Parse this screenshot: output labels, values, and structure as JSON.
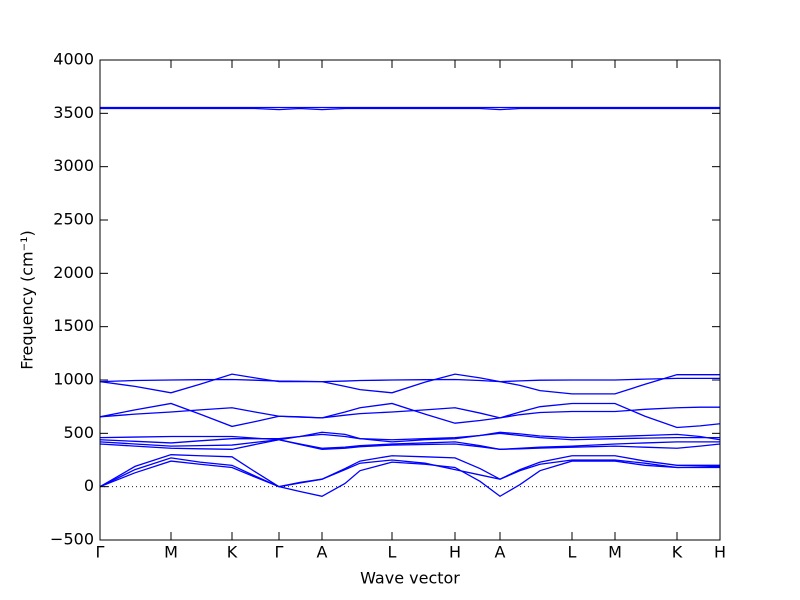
{
  "chart_data": {
    "type": "line",
    "xlabel": "Wave vector",
    "ylabel": "Frequency (cm⁻¹)",
    "x": [
      0,
      35,
      71,
      100,
      132,
      155,
      179,
      200,
      222,
      245,
      260,
      292,
      325,
      355,
      380,
      400,
      420,
      440,
      472,
      515,
      545,
      577,
      600,
      620
    ],
    "xlim": [
      0,
      620
    ],
    "xticks": [
      {
        "value": 0,
        "label": "Γ"
      },
      {
        "value": 71,
        "label": "M"
      },
      {
        "value": 132,
        "label": "K"
      },
      {
        "value": 179,
        "label": "Γ"
      },
      {
        "value": 222,
        "label": "A"
      },
      {
        "value": 292,
        "label": "L"
      },
      {
        "value": 355,
        "label": "H"
      },
      {
        "value": 400,
        "label": "A"
      },
      {
        "value": 472,
        "label": "L"
      },
      {
        "value": 515,
        "label": "M"
      },
      {
        "value": 577,
        "label": "K"
      },
      {
        "value": 620,
        "label": "H"
      }
    ],
    "ylim": [
      -500,
      4000
    ],
    "yticks": [
      {
        "value": -500,
        "label": "−500"
      },
      0,
      500,
      1000,
      1500,
      2000,
      2500,
      3000,
      3500,
      4000
    ],
    "baseline": 0,
    "series": [
      {
        "color": "#0000ff",
        "values": [
          3555,
          3555,
          3555,
          3555,
          3555,
          3555,
          3555,
          3555,
          3555,
          3555,
          3555,
          3555,
          3555,
          3555,
          3555,
          3555,
          3555,
          3555,
          3555,
          3555,
          3555,
          3555,
          3555,
          3555
        ]
      },
      {
        "color": "#0000ff",
        "values": [
          3545,
          3545,
          3545,
          3545,
          3545,
          3545,
          3535,
          3545,
          3535,
          3545,
          3545,
          3545,
          3545,
          3545,
          3545,
          3535,
          3545,
          3545,
          3545,
          3545,
          3545,
          3545,
          3545,
          3545
        ]
      },
      {
        "color": "#0000ff",
        "values": [
          985,
          940,
          880,
          960,
          1055,
          1020,
          985,
          985,
          985,
          940,
          910,
          880,
          980,
          1055,
          1020,
          985,
          950,
          900,
          870,
          870,
          960,
          1050,
          1050,
          1050
        ]
      },
      {
        "color": "#0000ff",
        "values": [
          985,
          995,
          1000,
          1003,
          1005,
          998,
          990,
          988,
          985,
          990,
          995,
          1000,
          1003,
          1005,
          995,
          985,
          992,
          998,
          1000,
          1000,
          1008,
          1015,
          1015,
          1015
        ]
      },
      {
        "color": "#0000ff",
        "values": [
          655,
          720,
          780,
          680,
          565,
          610,
          660,
          655,
          645,
          700,
          740,
          780,
          680,
          595,
          620,
          645,
          700,
          750,
          780,
          780,
          660,
          555,
          570,
          590
        ]
      },
      {
        "color": "#0000ff",
        "values": [
          655,
          680,
          700,
          720,
          740,
          700,
          660,
          652,
          645,
          670,
          685,
          700,
          720,
          740,
          690,
          645,
          675,
          695,
          705,
          705,
          725,
          740,
          745,
          745
        ]
      },
      {
        "color": "#0000ff",
        "values": [
          460,
          465,
          470,
          470,
          470,
          455,
          440,
          470,
          510,
          490,
          450,
          420,
          440,
          450,
          480,
          510,
          495,
          475,
          460,
          470,
          480,
          490,
          470,
          440
        ]
      },
      {
        "color": "#0000ff",
        "values": [
          440,
          425,
          410,
          430,
          450,
          450,
          450,
          470,
          490,
          470,
          450,
          440,
          450,
          460,
          480,
          500,
          480,
          460,
          440,
          450,
          455,
          460,
          460,
          460
        ]
      },
      {
        "color": "#0000ff",
        "values": [
          420,
          400,
          380,
          385,
          390,
          415,
          440,
          400,
          360,
          370,
          385,
          400,
          410,
          420,
          385,
          350,
          360,
          370,
          380,
          400,
          410,
          420,
          420,
          420
        ]
      },
      {
        "color": "#0000ff",
        "values": [
          400,
          380,
          360,
          355,
          350,
          395,
          440,
          395,
          350,
          360,
          375,
          390,
          395,
          400,
          375,
          350,
          355,
          362,
          370,
          380,
          370,
          360,
          380,
          400
        ]
      },
      {
        "color": "#0000ff",
        "values": [
          0,
          190,
          300,
          290,
          280,
          140,
          0,
          40,
          70,
          170,
          240,
          290,
          280,
          270,
          170,
          70,
          160,
          230,
          290,
          290,
          240,
          200,
          200,
          200
        ]
      },
      {
        "color": "#0000ff",
        "values": [
          0,
          160,
          270,
          230,
          200,
          100,
          0,
          35,
          70,
          160,
          220,
          250,
          220,
          160,
          110,
          70,
          150,
          210,
          250,
          250,
          220,
          180,
          185,
          190
        ]
      },
      {
        "color": "#0000ff",
        "values": [
          0,
          130,
          240,
          210,
          180,
          90,
          0,
          -45,
          -90,
          30,
          150,
          230,
          210,
          180,
          50,
          -90,
          20,
          150,
          240,
          240,
          200,
          180,
          180,
          180
        ]
      }
    ]
  }
}
